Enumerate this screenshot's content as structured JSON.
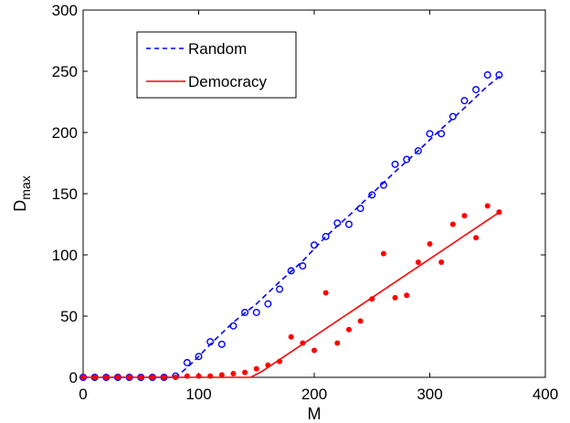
{
  "chart_data": {
    "type": "line",
    "xlabel": "M",
    "ylabel_main": "D",
    "ylabel_sub": "max",
    "xlim": [
      0,
      400
    ],
    "ylim": [
      0,
      300
    ],
    "xticks": [
      0,
      100,
      200,
      300,
      400
    ],
    "yticks": [
      0,
      50,
      100,
      150,
      200,
      250,
      300
    ],
    "grid": false,
    "legend_position": "top-left",
    "legend": [
      {
        "name": "Random",
        "style": "dashed",
        "color": "#0000ff"
      },
      {
        "name": "Democracy",
        "style": "solid",
        "color": "#ff0000"
      }
    ],
    "series": [
      {
        "name": "Random",
        "marker": "circle",
        "color": "#0000ff",
        "line_style": "dashed",
        "line": [
          [
            0,
            0
          ],
          [
            80,
            0
          ],
          [
            90,
            8
          ],
          [
            100,
            17
          ],
          [
            110,
            27
          ],
          [
            130,
            45
          ],
          [
            150,
            60
          ],
          [
            170,
            78
          ],
          [
            190,
            95
          ],
          [
            210,
            115
          ],
          [
            230,
            132
          ],
          [
            250,
            150
          ],
          [
            270,
            168
          ],
          [
            290,
            185
          ],
          [
            310,
            203
          ],
          [
            330,
            220
          ],
          [
            350,
            238
          ],
          [
            362,
            247
          ]
        ],
        "points": [
          [
            0,
            0
          ],
          [
            10,
            0
          ],
          [
            20,
            0
          ],
          [
            30,
            0
          ],
          [
            40,
            0
          ],
          [
            50,
            0
          ],
          [
            60,
            0
          ],
          [
            70,
            0
          ],
          [
            80,
            1
          ],
          [
            90,
            12
          ],
          [
            100,
            17
          ],
          [
            110,
            29
          ],
          [
            120,
            27
          ],
          [
            130,
            42
          ],
          [
            140,
            53
          ],
          [
            150,
            53
          ],
          [
            160,
            60
          ],
          [
            170,
            72
          ],
          [
            180,
            87
          ],
          [
            190,
            91
          ],
          [
            200,
            108
          ],
          [
            210,
            115
          ],
          [
            220,
            126
          ],
          [
            230,
            125
          ],
          [
            240,
            138
          ],
          [
            250,
            149
          ],
          [
            260,
            157
          ],
          [
            270,
            174
          ],
          [
            280,
            178
          ],
          [
            290,
            185
          ],
          [
            300,
            199
          ],
          [
            310,
            199
          ],
          [
            320,
            213
          ],
          [
            330,
            226
          ],
          [
            340,
            235
          ],
          [
            350,
            247
          ],
          [
            360,
            247
          ]
        ]
      },
      {
        "name": "Democracy",
        "marker": "dot",
        "color": "#ff0000",
        "line_style": "solid",
        "line": [
          [
            0,
            0
          ],
          [
            145,
            0
          ],
          [
            155,
            5
          ],
          [
            362,
            136
          ]
        ],
        "points": [
          [
            0,
            0
          ],
          [
            10,
            0
          ],
          [
            20,
            0
          ],
          [
            30,
            0
          ],
          [
            40,
            0
          ],
          [
            50,
            0
          ],
          [
            60,
            0
          ],
          [
            70,
            0
          ],
          [
            80,
            0
          ],
          [
            90,
            1
          ],
          [
            100,
            1
          ],
          [
            110,
            1
          ],
          [
            120,
            2
          ],
          [
            130,
            3
          ],
          [
            140,
            4
          ],
          [
            150,
            7
          ],
          [
            160,
            10
          ],
          [
            170,
            13
          ],
          [
            180,
            33
          ],
          [
            190,
            28
          ],
          [
            200,
            22
          ],
          [
            210,
            69
          ],
          [
            220,
            28
          ],
          [
            230,
            39
          ],
          [
            240,
            46
          ],
          [
            250,
            64
          ],
          [
            260,
            101
          ],
          [
            270,
            65
          ],
          [
            280,
            67
          ],
          [
            290,
            94
          ],
          [
            300,
            109
          ],
          [
            310,
            94
          ],
          [
            320,
            125
          ],
          [
            330,
            132
          ],
          [
            340,
            114
          ],
          [
            350,
            140
          ],
          [
            360,
            135
          ]
        ]
      }
    ]
  }
}
